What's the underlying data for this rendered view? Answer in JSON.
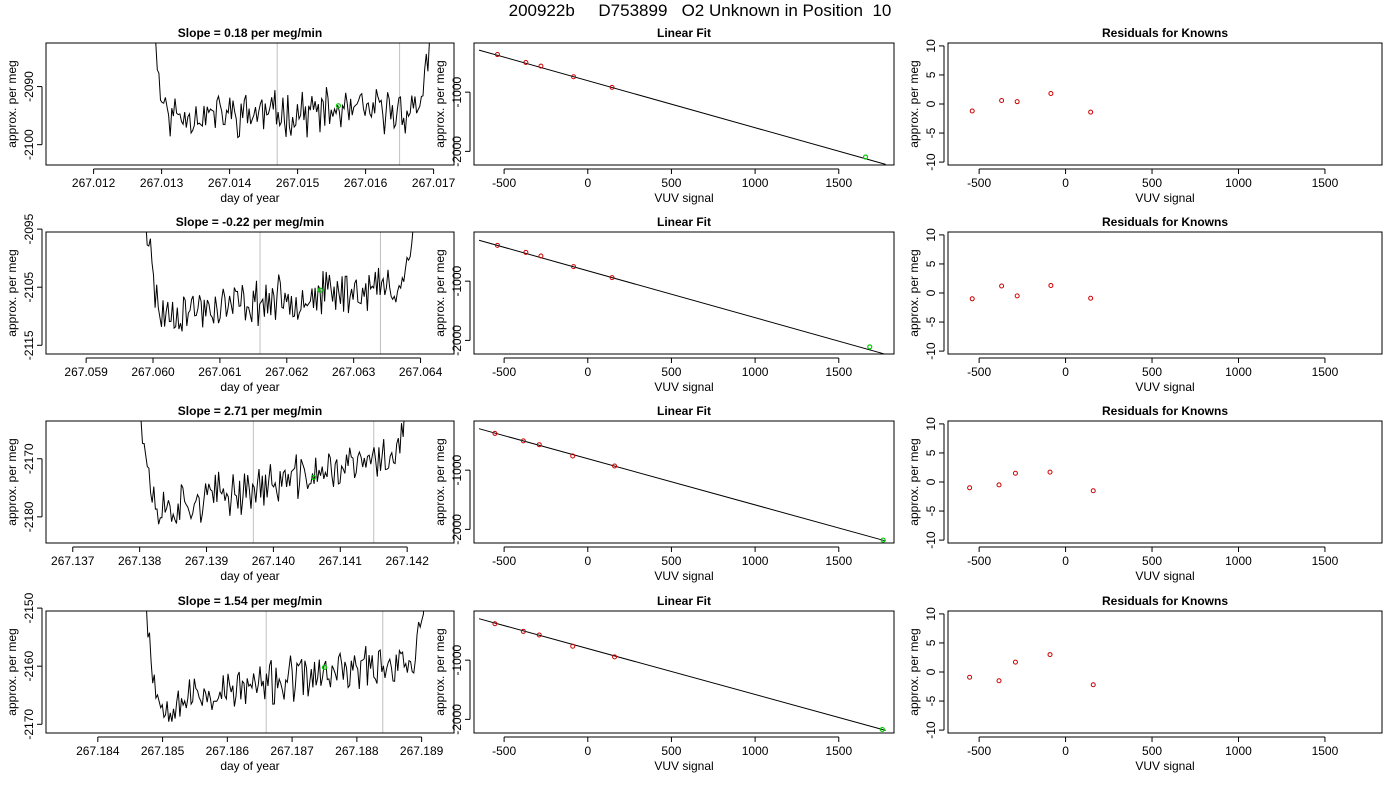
{
  "title": "200922b     D753899   O2 Unknown in Position  10",
  "colors": {
    "series": "#000000",
    "known": "#cc0000",
    "unknown": "#00cc00",
    "cycle_line": "#c0c0c0"
  },
  "chart_data": [
    {
      "type": "line",
      "title": "Slope =  0.18  per meg/min",
      "xlabel": "day of year",
      "ylabel": "approx. per meg",
      "xlim": [
        267.0113,
        267.0173
      ],
      "ylim": [
        -2103.5,
        -2082.5
      ],
      "xticks": [
        267.012,
        267.013,
        267.014,
        267.015,
        267.016,
        267.017
      ],
      "xticklabels": [
        "267.012",
        "267.013",
        "267.014",
        "267.015",
        "267.016",
        "267.017"
      ],
      "yticks": [
        -2100,
        -2090
      ],
      "yticklabels": [
        "-2100",
        "-2090"
      ],
      "t_start": 267.0127,
      "t_end": 267.0172,
      "level": -2095,
      "drift": 1.0,
      "spike_start": 16,
      "spike_end": 20,
      "seed": 11,
      "vlines": [
        267.0147,
        267.0165
      ],
      "unknown_point": {
        "x": 267.0156,
        "y": -2093.3
      }
    },
    {
      "type": "scatter",
      "title": "Linear Fit",
      "xlabel": "VUV signal",
      "ylabel": "approx. per meg",
      "xlim": [
        -680,
        1830
      ],
      "ylim": [
        -2230,
        -170
      ],
      "xticks": [
        -500,
        0,
        500,
        1000,
        1500
      ],
      "xticklabels": [
        "-500",
        "0",
        "500",
        "1000",
        "1500"
      ],
      "yticks": [
        -2000,
        -1000
      ],
      "yticklabels": [
        "-2000",
        "-1000"
      ],
      "knowns": {
        "x": [
          -540,
          -370,
          -280,
          -85,
          145
        ],
        "y": [
          -365,
          -500,
          -560,
          -740,
          -920
        ]
      },
      "unknown": {
        "x": 1660,
        "y": -2095
      },
      "fit_line": [
        [
          -650,
          -290
        ],
        [
          1780,
          -2220
        ]
      ]
    },
    {
      "type": "scatter",
      "title": "Residuals for Knowns",
      "xlabel": "VUV signal",
      "ylabel": "",
      "xlim": [
        -680,
        1830
      ],
      "ylim": [
        -10.5,
        10.5
      ],
      "xticks": [
        -500,
        0,
        500,
        1000,
        1500
      ],
      "xticklabels": [
        "-500",
        "0",
        "500",
        "1000",
        "1500"
      ],
      "yticks": [
        -10,
        -5,
        0,
        5,
        10
      ],
      "yticklabels": [
        "-10",
        "-5",
        "0",
        "5",
        "10"
      ],
      "x": [
        -540,
        -370,
        -280,
        -85,
        145
      ],
      "y": [
        -1.2,
        0.6,
        0.4,
        1.8,
        -1.4
      ]
    },
    {
      "type": "line",
      "title": "Slope =  -0.22  per meg/min",
      "xlabel": "day of year",
      "ylabel": "approx. per meg",
      "xlim": [
        267.0584,
        267.0645
      ],
      "ylim": [
        -2116.5,
        -2095.5
      ],
      "xticks": [
        267.059,
        267.06,
        267.061,
        267.062,
        267.063,
        267.064
      ],
      "xticklabels": [
        "267.059",
        "267.060",
        "267.061",
        "267.062",
        "267.063",
        "267.064"
      ],
      "yticks": [
        -2115,
        -2105,
        -2095
      ],
      "yticklabels": [
        "-2115",
        "-2105",
        "-2095"
      ],
      "t_start": 267.0597,
      "t_end": 267.0642,
      "level": -2110,
      "drift": 6.0,
      "spike_start": 18,
      "spike_end": 22,
      "seed": 23,
      "vlines": [
        267.0616,
        267.0634
      ],
      "unknown_point": {
        "x": 267.0625,
        "y": -2105.5
      }
    },
    {
      "type": "scatter",
      "title": "Linear Fit",
      "xlabel": "VUV signal",
      "ylabel": "approx. per meg",
      "xlim": [
        -680,
        1830
      ],
      "ylim": [
        -2230,
        -170
      ],
      "xticks": [
        -500,
        0,
        500,
        1000,
        1500
      ],
      "xticklabels": [
        "-500",
        "0",
        "500",
        "1000",
        "1500"
      ],
      "yticks": [
        -2000,
        -1000
      ],
      "yticklabels": [
        "-2000",
        "-1000"
      ],
      "knowns": {
        "x": [
          -540,
          -370,
          -280,
          -85,
          145
        ],
        "y": [
          -395,
          -515,
          -575,
          -755,
          -940
        ]
      },
      "unknown": {
        "x": 1685,
        "y": -2110
      },
      "fit_line": [
        [
          -650,
          -310
        ],
        [
          1780,
          -2235
        ]
      ]
    },
    {
      "type": "scatter",
      "title": "Residuals for Knowns",
      "xlabel": "VUV signal",
      "ylabel": "",
      "xlim": [
        -680,
        1830
      ],
      "ylim": [
        -10.5,
        10.5
      ],
      "xticks": [
        -500,
        0,
        500,
        1000,
        1500
      ],
      "xticklabels": [
        "-500",
        "0",
        "500",
        "1000",
        "1500"
      ],
      "yticks": [
        -10,
        -5,
        0,
        5,
        10
      ],
      "yticklabels": [
        "-10",
        "-5",
        "0",
        "5",
        "10"
      ],
      "x": [
        -540,
        -370,
        -280,
        -85,
        145
      ],
      "y": [
        -1.0,
        1.2,
        -0.5,
        1.3,
        -0.9
      ]
    },
    {
      "type": "line",
      "title": "Slope =  2.71  per meg/min",
      "xlabel": "day of year",
      "ylabel": "approx. per meg",
      "xlim": [
        267.1366,
        267.1427
      ],
      "ylim": [
        -2184.5,
        -2163.5
      ],
      "xticks": [
        267.137,
        267.138,
        267.139,
        267.14,
        267.141,
        267.142
      ],
      "xticklabels": [
        "267.137",
        "267.138",
        "267.139",
        "267.140",
        "267.141",
        "267.142"
      ],
      "yticks": [
        -2180,
        -2170
      ],
      "yticklabels": [
        "-2180",
        "-2170"
      ],
      "t_start": 267.1378,
      "t_end": 267.1424,
      "level": -2180,
      "drift": 12.0,
      "spike_start": 20,
      "spike_end": 26,
      "seed": 37,
      "vlines": [
        267.1397,
        267.1415
      ],
      "unknown_point": {
        "x": 267.1406,
        "y": -2173.2
      }
    },
    {
      "type": "scatter",
      "title": "Linear Fit",
      "xlabel": "VUV signal",
      "ylabel": "approx. per meg",
      "xlim": [
        -680,
        1830
      ],
      "ylim": [
        -2230,
        -170
      ],
      "xticks": [
        -500,
        0,
        500,
        1000,
        1500
      ],
      "xticklabels": [
        "-500",
        "0",
        "500",
        "1000",
        "1500"
      ],
      "yticks": [
        -2000,
        -1000
      ],
      "yticklabels": [
        "-2000",
        "-1000"
      ],
      "knowns": {
        "x": [
          -555,
          -385,
          -290,
          -90,
          160
        ],
        "y": [
          -380,
          -505,
          -570,
          -760,
          -930
        ]
      },
      "unknown": {
        "x": 1765,
        "y": -2180
      },
      "fit_line": [
        [
          -650,
          -300
        ],
        [
          1780,
          -2195
        ]
      ]
    },
    {
      "type": "scatter",
      "title": "Residuals for Knowns",
      "xlabel": "VUV signal",
      "ylabel": "",
      "xlim": [
        -680,
        1830
      ],
      "ylim": [
        -10.5,
        10.5
      ],
      "xticks": [
        -500,
        0,
        500,
        1000,
        1500
      ],
      "xticklabels": [
        "-500",
        "0",
        "500",
        "1000",
        "1500"
      ],
      "yticks": [
        -10,
        -5,
        0,
        5,
        10
      ],
      "yticklabels": [
        "-10",
        "-5",
        "0",
        "5",
        "10"
      ],
      "x": [
        -555,
        -385,
        -290,
        -90,
        160
      ],
      "y": [
        -1.0,
        -0.5,
        1.5,
        1.7,
        -1.5
      ]
    },
    {
      "type": "line",
      "title": "Slope =  1.54  per meg/min",
      "xlabel": "day of year",
      "ylabel": "approx. per meg",
      "xlim": [
        267.1832,
        267.1895
      ],
      "ylim": [
        -2171.5,
        -2150.5
      ],
      "xticks": [
        267.184,
        267.185,
        267.186,
        267.187,
        267.188,
        267.189
      ],
      "xticklabels": [
        "267.184",
        "267.185",
        "267.186",
        "267.187",
        "267.188",
        "267.189"
      ],
      "yticks": [
        -2170,
        -2160,
        -2150
      ],
      "yticklabels": [
        "-2170",
        "-2160",
        "-2150"
      ],
      "t_start": 267.1846,
      "t_end": 267.1893,
      "level": -2167,
      "drift": 9.0,
      "spike_start": 14,
      "spike_end": 18,
      "seed": 53,
      "vlines": [
        267.1866,
        267.1884
      ],
      "unknown_point": {
        "x": 267.1875,
        "y": -2160.2
      }
    },
    {
      "type": "scatter",
      "title": "Linear Fit",
      "xlabel": "VUV signal",
      "ylabel": "approx. per meg",
      "xlim": [
        -680,
        1830
      ],
      "ylim": [
        -2230,
        -170
      ],
      "xticks": [
        -500,
        0,
        500,
        1000,
        1500
      ],
      "xticklabels": [
        "-500",
        "0",
        "500",
        "1000",
        "1500"
      ],
      "yticks": [
        -2000,
        -1000
      ],
      "yticklabels": [
        "-2000",
        "-1000"
      ],
      "knowns": {
        "x": [
          -555,
          -385,
          -290,
          -90,
          160
        ],
        "y": [
          -385,
          -515,
          -575,
          -765,
          -945
        ]
      },
      "unknown": {
        "x": 1760,
        "y": -2170
      },
      "fit_line": [
        [
          -650,
          -300
        ],
        [
          1780,
          -2185
        ]
      ]
    },
    {
      "type": "scatter",
      "title": "Residuals for Knowns",
      "xlabel": "VUV signal",
      "ylabel": "",
      "xlim": [
        -680,
        1830
      ],
      "ylim": [
        -10.5,
        10.5
      ],
      "xticks": [
        -500,
        0,
        500,
        1000,
        1500
      ],
      "xticklabels": [
        "-500",
        "0",
        "500",
        "1000",
        "1500"
      ],
      "yticks": [
        -10,
        -5,
        0,
        5,
        10
      ],
      "yticklabels": [
        "-10",
        "-5",
        "0",
        "5",
        "10"
      ],
      "x": [
        -555,
        -385,
        -290,
        -90,
        160
      ],
      "y": [
        -0.9,
        -1.5,
        1.7,
        3.0,
        -2.2
      ]
    }
  ]
}
